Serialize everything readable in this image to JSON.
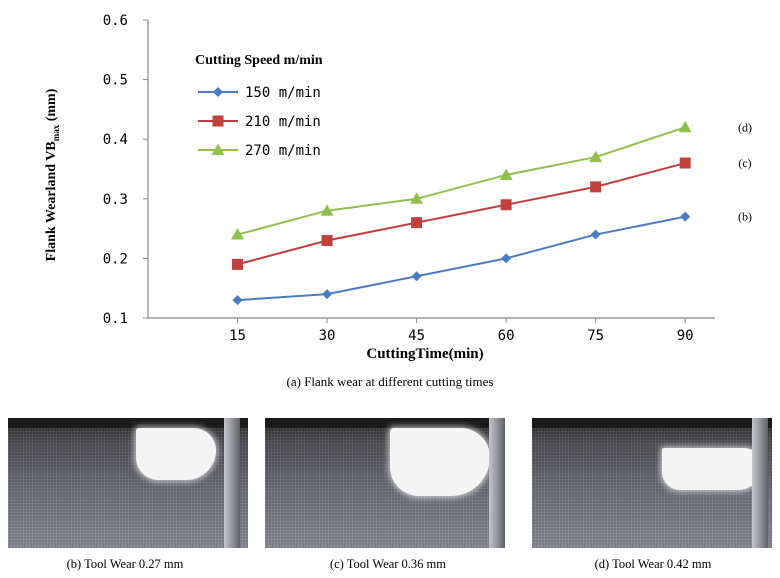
{
  "chart_data": {
    "type": "line",
    "title": "",
    "xlabel": "CuttingTime(min)",
    "ylabel_main": "Flank Wearland VB",
    "ylabel_sub": "max",
    "ylabel_unit": "(mm)",
    "x": [
      15,
      30,
      45,
      60,
      75,
      90
    ],
    "ylim": [
      0.1,
      0.6
    ],
    "yticks": [
      "0.1",
      "0.2",
      "0.3",
      "0.4",
      "0.5",
      "0.6"
    ],
    "xticks": [
      "15",
      "30",
      "45",
      "60",
      "75",
      "90"
    ],
    "grid": false,
    "legend_title": "Cutting Speed m/min",
    "legend_position": "top-left",
    "series": [
      {
        "name": "150 m/min",
        "values": [
          0.13,
          0.14,
          0.17,
          0.2,
          0.24,
          0.27
        ],
        "color": "#4a7cc4",
        "marker": "diamond",
        "end_label": "(b)"
      },
      {
        "name": "210 m/min",
        "values": [
          0.19,
          0.23,
          0.26,
          0.29,
          0.32,
          0.36
        ],
        "color": "#c0403c",
        "marker": "square",
        "end_label": "(c)"
      },
      {
        "name": "270 m/min",
        "values": [
          0.24,
          0.28,
          0.3,
          0.34,
          0.37,
          0.42
        ],
        "color": "#92c04f",
        "marker": "triangle",
        "end_label": "(d)"
      }
    ]
  },
  "captions": {
    "chart": "(a) Flank wear at different cutting times",
    "photo_b": "(b) Tool Wear 0.27 mm",
    "photo_c": "(c) Tool Wear 0.36 mm",
    "photo_d": "(d) Tool Wear 0.42 mm"
  }
}
